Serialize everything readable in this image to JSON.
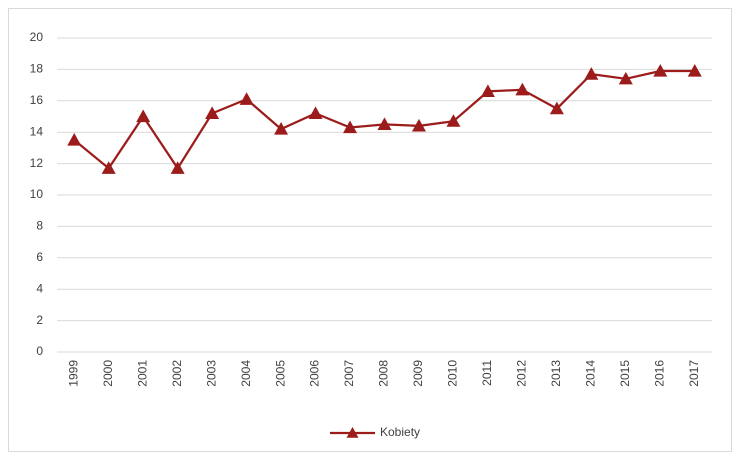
{
  "chart_data": {
    "type": "line",
    "categories": [
      "1999",
      "2000",
      "2001",
      "2002",
      "2003",
      "2004",
      "2005",
      "2006",
      "2007",
      "2008",
      "2009",
      "2010",
      "2011",
      "2012",
      "2013",
      "2014",
      "2015",
      "2016",
      "2017"
    ],
    "series": [
      {
        "name": "Kobiety",
        "color": "#9c1c1c",
        "values": [
          13.5,
          11.7,
          15.0,
          11.7,
          15.2,
          16.1,
          14.2,
          15.2,
          14.3,
          14.5,
          14.4,
          14.7,
          16.6,
          16.7,
          15.5,
          17.7,
          17.4,
          17.9,
          17.9
        ]
      }
    ],
    "ylim": [
      0,
      20
    ],
    "yticks": [
      0,
      2,
      4,
      6,
      8,
      10,
      12,
      14,
      16,
      18,
      20
    ],
    "grid": true,
    "legend": "bottom"
  }
}
